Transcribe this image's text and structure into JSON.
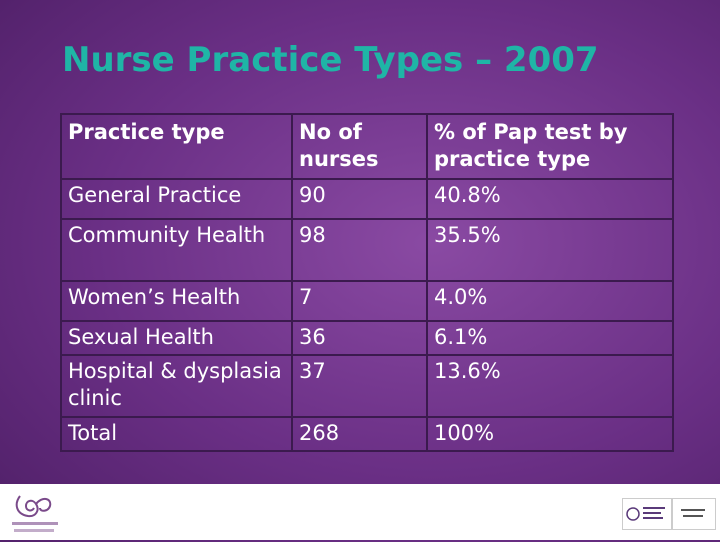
{
  "slide": {
    "title": "Nurse Practice Types – 2007"
  },
  "table": {
    "headers": [
      "Practice type",
      "No of nurses",
      "% of Pap test by practice type"
    ],
    "rows": [
      [
        "General Practice",
        "90",
        "40.8%"
      ],
      [
        "Community Health",
        "98",
        "35.5%"
      ],
      [
        "Women’s Health",
        "7",
        "4.0%"
      ],
      [
        "Sexual Health",
        "36",
        "6.1%"
      ],
      [
        "Hospital & dysplasia clinic",
        "37",
        "13.6%"
      ],
      [
        "Total",
        "268",
        "100%"
      ]
    ]
  }
}
